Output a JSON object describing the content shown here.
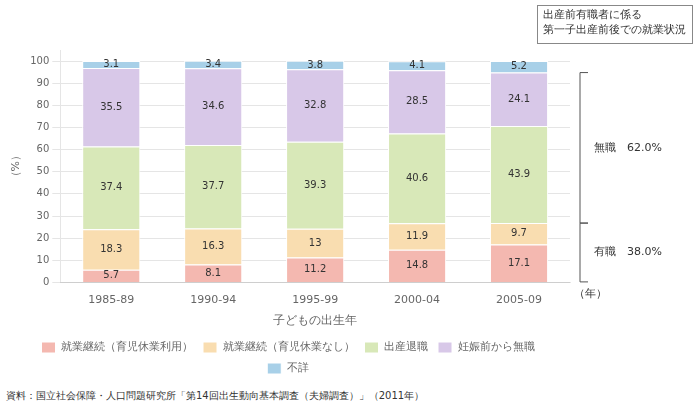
{
  "chart_data": {
    "type": "bar",
    "stacked": true,
    "categories": [
      "1985-89",
      "1990-94",
      "1995-99",
      "2000-04",
      "2005-09"
    ],
    "series": [
      {
        "name": "就業継続（育児休業利用）",
        "color": "#f4b8b0",
        "values": [
          5.7,
          8.1,
          11.2,
          14.8,
          17.1
        ]
      },
      {
        "name": "就業継続（育児休業なし）",
        "color": "#f9ddb0",
        "values": [
          18.3,
          16.3,
          13.0,
          11.9,
          9.7
        ]
      },
      {
        "name": "出産退職",
        "color": "#d8e8b8",
        "values": [
          37.4,
          37.7,
          39.3,
          40.6,
          43.9
        ]
      },
      {
        "name": "妊娠前から無職",
        "color": "#d8c8e8",
        "values": [
          35.5,
          34.6,
          32.8,
          28.5,
          24.1
        ]
      },
      {
        "name": "不詳",
        "color": "#a8d0e8",
        "values": [
          3.1,
          3.4,
          3.8,
          4.1,
          5.2
        ]
      }
    ],
    "xlabel": "子どもの出生年",
    "ylabel": "（%）",
    "ylim": [
      0,
      105
    ],
    "yticks": [
      0,
      10,
      20,
      30,
      40,
      50,
      60,
      70,
      80,
      90,
      100
    ],
    "grid": true,
    "legend": "bottom",
    "data_labels": true,
    "annotations": [
      "出産前有職者に係る\n第一子出産前後での就業状況",
      "無職　62.0%",
      "有職　38.0%",
      "（年）"
    ],
    "source": "資料：国立社会保障・人口問題研究所「第14回出生動向基本調査（夫婦調査）」（2011年）"
  }
}
